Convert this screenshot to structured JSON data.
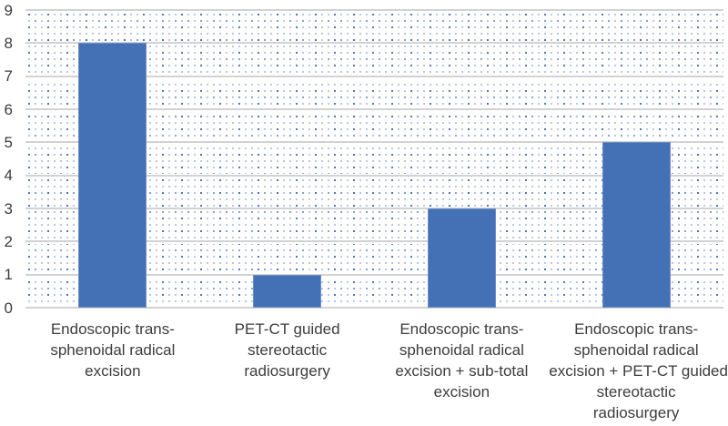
{
  "chart_data": {
    "type": "bar",
    "title": "",
    "xlabel": "",
    "ylabel": "",
    "categories": [
      "Endoscopic trans-sphenoidal radical excision",
      "PET-CT guided stereotactic radiosurgery",
      "Endoscopic trans-sphenoidal radical excision + sub-total excision",
      "Endoscopic trans-sphenoidal radical excision + PET-CT guided stereotactic radiosurgery"
    ],
    "category_lines": [
      [
        "Endoscopic trans-",
        "sphenoidal radical",
        "excision"
      ],
      [
        "PET-CT guided",
        "stereotactic",
        "radiosurgery"
      ],
      [
        "Endoscopic trans-",
        "sphenoidal radical",
        "excision + sub-total",
        "excision"
      ],
      [
        "Endoscopic trans-",
        "sphenoidal radical",
        "excision + PET-CT guided",
        "stereotactic",
        "radiosurgery"
      ]
    ],
    "values": [
      8,
      1,
      3,
      5
    ],
    "ylim": [
      0,
      9
    ],
    "yticks": [
      0,
      1,
      2,
      3,
      4,
      5,
      6,
      7,
      8,
      9
    ],
    "grid": true,
    "legend": false,
    "plot_background": "dotted-halftone",
    "colors": {
      "bar": "#4470b6",
      "gridline": "#d2d2d2",
      "text": "#3d3d3d",
      "dot_dark": "#3e68b4",
      "dot_mid": "#6f92cc",
      "dot_light": "#a7b9dc",
      "background": "#ffffff"
    }
  }
}
